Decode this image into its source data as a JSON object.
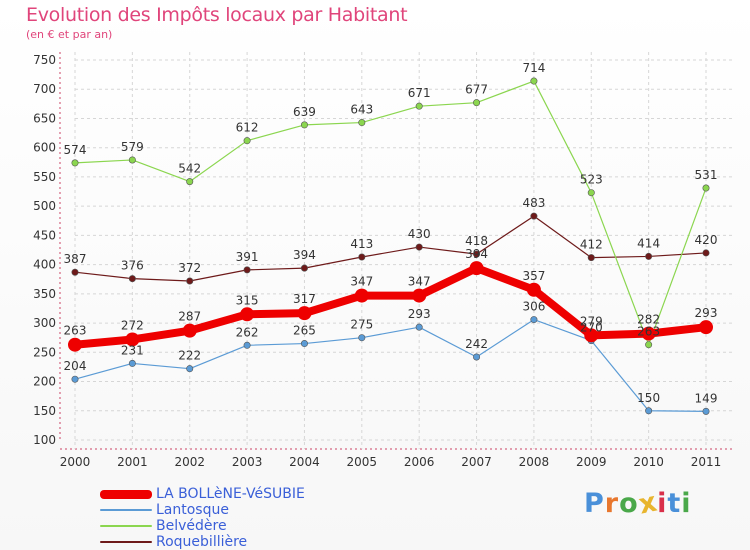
{
  "header": {
    "title": "Evolution des Impôts locaux par Habitant",
    "subtitle": "(en € et par an)"
  },
  "logo_text": "Proxiti",
  "colors": {
    "title": "#e0457b",
    "legend_text": "#3a5fd8",
    "grid": "#d6d6d6",
    "logo": [
      "#4a90d9",
      "#e8772e",
      "#4aa84a",
      "#e8b52e",
      "#d9304a",
      "#4a90d9",
      "#4aa84a"
    ]
  },
  "chart_data": {
    "type": "line",
    "x": [
      "2000",
      "2001",
      "2002",
      "2003",
      "2004",
      "2005",
      "2006",
      "2007",
      "2008",
      "2009",
      "2010",
      "2011"
    ],
    "ylim": [
      100,
      750
    ],
    "yticks": [
      "100",
      "150",
      "200",
      "250",
      "300",
      "350",
      "400",
      "450",
      "500",
      "550",
      "600",
      "650",
      "700",
      "750"
    ],
    "grid": true,
    "legend_position": "bottom-left",
    "series": [
      {
        "name": "Roquebillière",
        "color": "#6e1a1a",
        "values": [
          387,
          376,
          372,
          391,
          394,
          413,
          430,
          418,
          483,
          412,
          414,
          420
        ],
        "labels": [
          "387",
          "376",
          "372",
          "391",
          "394",
          "413",
          "430",
          "418",
          "483",
          "412",
          "414",
          "420"
        ]
      },
      {
        "name": "Belvédère",
        "color": "#8bd64f",
        "values": [
          574,
          579,
          542,
          612,
          639,
          643,
          671,
          677,
          714,
          523,
          263,
          531
        ],
        "labels": [
          "574",
          "579",
          "542",
          "612",
          "639",
          "643",
          "671",
          "677",
          "714",
          "523",
          "263",
          "531"
        ]
      },
      {
        "name": "Lantosque",
        "color": "#5b9bd5",
        "values": [
          204,
          231,
          222,
          262,
          265,
          275,
          293,
          242,
          306,
          270,
          150,
          149
        ],
        "labels": [
          "204",
          "231",
          "222",
          "262",
          "265",
          "275",
          "293",
          "242",
          "306",
          "270",
          "150",
          "149"
        ]
      },
      {
        "name": "LA BOLLèNE-VéSUBIE",
        "color": "#ee0000",
        "values": [
          263,
          272,
          287,
          315,
          317,
          347,
          347,
          394,
          357,
          279,
          282,
          293
        ],
        "labels": [
          "263",
          "272",
          "287",
          "315",
          "317",
          "347",
          "347",
          "394",
          "357",
          "279",
          "282",
          "293"
        ]
      }
    ],
    "legend": [
      "LA BOLLèNE-VéSUBIE",
      "Lantosque",
      "Belvédère",
      "Roquebillière"
    ]
  }
}
